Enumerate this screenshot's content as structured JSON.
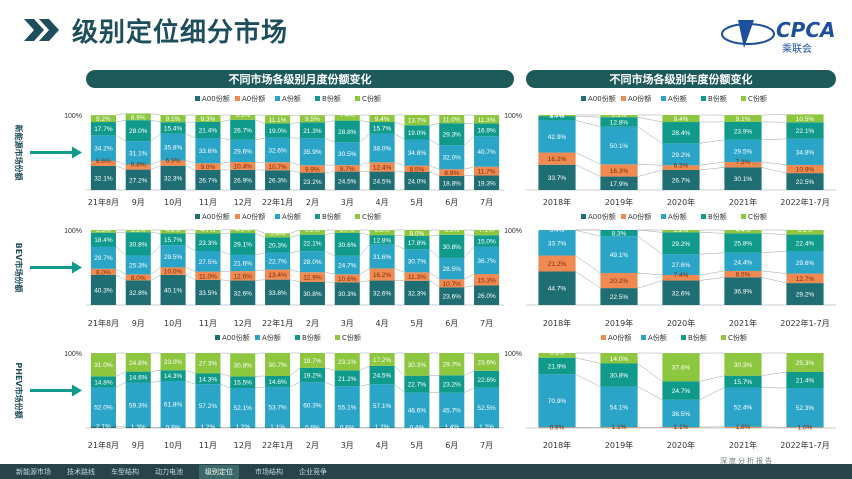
{
  "page": {
    "title": "级别定位细分市场",
    "logo_text": "CPCA",
    "logo_sub": "乘联会",
    "footer_note": "深度分析报告"
  },
  "panels": {
    "monthly_title": "不同市场各级别月度份额变化",
    "yearly_title": "不同市场各级别年度份额变化"
  },
  "colors": {
    "A00": "#1f6e73",
    "A0": "#ee8a52",
    "A": "#2aa4c7",
    "B": "#0f9a8c",
    "C": "#8dc63f"
  },
  "nav": [
    "新能源市场",
    "技术路线",
    "车型结构",
    "动力电池",
    "级别定位",
    "市场结构",
    "企业竞争"
  ],
  "nav_active": 4,
  "chart_data": [
    {
      "type": "bar",
      "stacked": true,
      "ylabel": "新能源市场份额",
      "ytick": "100%",
      "legend": [
        "A00份额",
        "A0份额",
        "A份额",
        "B份额",
        "C份额"
      ],
      "categories": [
        "21年8月",
        "9月",
        "10月",
        "11月",
        "12月",
        "22年1月",
        "2月",
        "3月",
        "4月",
        "5月",
        "6月",
        "7月"
      ],
      "series": [
        {
          "name": "A00份额",
          "values": [
            32.1,
            27.2,
            32.3,
            26.7,
            26.9,
            26.3,
            23.2,
            24.5,
            24.5,
            24.0,
            18.8,
            19.3
          ]
        },
        {
          "name": "A0份额",
          "values": [
            6.6,
            6.8,
            6.9,
            9.0,
            10.4,
            10.7,
            9.9,
            8.7,
            12.4,
            8.5,
            8.9,
            11.7
          ]
        },
        {
          "name": "A份额",
          "values": [
            34.2,
            31.1,
            35.8,
            33.6,
            29.6,
            32.6,
            35.9,
            30.5,
            38.0,
            34.8,
            32.0,
            40.7
          ]
        },
        {
          "name": "B份额",
          "values": [
            17.7,
            28.0,
            15.4,
            21.4,
            26.7,
            19.0,
            21.3,
            28.8,
            15.7,
            19.0,
            29.3,
            16.9
          ]
        },
        {
          "name": "C份额",
          "values": [
            9.2,
            8.9,
            9.5,
            9.3,
            6.5,
            11.1,
            9.5,
            7.4,
            9.4,
            13.7,
            11.0,
            11.3
          ]
        }
      ]
    },
    {
      "type": "bar",
      "stacked": true,
      "ylabel": "BEV市场份额",
      "ytick": "100%",
      "legend": [
        "A00份额",
        "A0份额",
        "A份额",
        "B份额",
        "C份额"
      ],
      "categories": [
        "21年8月",
        "9月",
        "10月",
        "11月",
        "12月",
        "22年1月",
        "2月",
        "3月",
        "4月",
        "5月",
        "6月",
        "7月"
      ],
      "series": [
        {
          "name": "A00份额",
          "values": [
            40.3,
            32.8,
            40.1,
            33.5,
            32.6,
            33.8,
            30.8,
            30.3,
            32.6,
            32.3,
            23.6,
            26.0
          ]
        },
        {
          "name": "A0份额",
          "values": [
            8.0,
            8.0,
            10.0,
            11.0,
            12.6,
            13.4,
            12.9,
            10.6,
            16.2,
            11.3,
            10.7,
            15.3
          ]
        },
        {
          "name": "A份额",
          "values": [
            29.7,
            25.3,
            29.5,
            27.5,
            21.6,
            22.7,
            28.0,
            24.7,
            31.6,
            30.7,
            28.5,
            36.7
          ]
        },
        {
          "name": "B份额",
          "values": [
            18.4,
            30.8,
            15.7,
            23.3,
            29.1,
            20.3,
            22.1,
            30.6,
            12.8,
            17.8,
            30.8,
            15.0
          ]
        },
        {
          "name": "C份额",
          "values": [
            3.6,
            3.2,
            4.8,
            4.7,
            4.5,
            5.4,
            6.2,
            3.7,
            6.8,
            8.0,
            6.3,
            7.1
          ]
        }
      ]
    },
    {
      "type": "bar",
      "stacked": true,
      "ylabel": "PHEV市场份额",
      "ytick": "100%",
      "legend": [
        "A00份额",
        "A份额",
        "B份额",
        "C份额"
      ],
      "categories": [
        "21年8月",
        "9月",
        "10月",
        "11月",
        "12月",
        "22年1月",
        "2月",
        "3月",
        "4月",
        "5月",
        "6月",
        "7月"
      ],
      "series": [
        {
          "name": "A00份额",
          "values": [
            2.1,
            1.3,
            0.9,
            1.2,
            1.2,
            1.1,
            0.8,
            0.6,
            1.2,
            0.4,
            1.4,
            1.2
          ]
        },
        {
          "name": "A份额",
          "values": [
            52.0,
            59.3,
            61.8,
            57.2,
            52.1,
            53.7,
            60.3,
            55.1,
            57.1,
            46.6,
            45.7,
            52.5
          ]
        },
        {
          "name": "B份额",
          "values": [
            14.8,
            14.6,
            14.3,
            14.3,
            15.5,
            14.6,
            19.2,
            21.2,
            24.5,
            22.7,
            23.2,
            22.6
          ]
        },
        {
          "name": "C份额",
          "values": [
            31.0,
            24.8,
            23.0,
            27.3,
            30.8,
            30.7,
            19.7,
            23.1,
            17.2,
            30.3,
            29.7,
            23.6
          ]
        }
      ]
    },
    {
      "type": "bar",
      "stacked": true,
      "ytick": "100%",
      "legend": [
        "A00份额",
        "A0份额",
        "A份额",
        "B份额",
        "C份额"
      ],
      "categories": [
        "2018年",
        "2019年",
        "2020年",
        "2021年",
        "2022年1-7月"
      ],
      "series": [
        {
          "name": "A00份额",
          "values": [
            33.7,
            17.9,
            26.7,
            30.1,
            22.5
          ]
        },
        {
          "name": "A0份额",
          "values": [
            16.2,
            16.3,
            6.3,
            7.3,
            10.9
          ]
        },
        {
          "name": "A份额",
          "values": [
            42.9,
            50.1,
            29.2,
            29.5,
            34.8
          ]
        },
        {
          "name": "B份额",
          "values": [
            5.7,
            12.8,
            28.4,
            23.9,
            22.1
          ]
        },
        {
          "name": "C份额",
          "values": [
            1.6,
            2.9,
            9.4,
            9.1,
            10.5
          ]
        }
      ]
    },
    {
      "type": "bar",
      "stacked": true,
      "ytick": "100%",
      "legend": [
        "A00份额",
        "A0份额",
        "A份额",
        "B份额",
        "C份额"
      ],
      "categories": [
        "2018年",
        "2019年",
        "2020年",
        "2021年",
        "2022年1-7月"
      ],
      "series": [
        {
          "name": "A00份额",
          "values": [
            44.7,
            22.5,
            32.6,
            36.9,
            29.2
          ]
        },
        {
          "name": "A0份额",
          "values": [
            21.2,
            20.2,
            7.4,
            8.5,
            12.7
          ]
        },
        {
          "name": "A份额",
          "values": [
            33.7,
            49.1,
            27.6,
            24.4,
            29.6
          ]
        },
        {
          "name": "B份额",
          "values": [
            0.4,
            8.3,
            29.2,
            25.8,
            22.4
          ]
        },
        {
          "name": "C份额",
          "values": [
            0.0,
            0.0,
            3.2,
            4.4,
            6.1
          ]
        }
      ]
    },
    {
      "type": "bar",
      "stacked": true,
      "ytick": "100%",
      "legend": [
        "A0份额",
        "A份额",
        "B份额",
        "C份额"
      ],
      "categories": [
        "2018年",
        "2019年",
        "2020年",
        "2021年",
        "2022年1-7月"
      ],
      "series": [
        {
          "name": "A0份额",
          "values": [
            0.9,
            1.1,
            1.1,
            1.6,
            1.0
          ]
        },
        {
          "name": "A份额",
          "values": [
            70.9,
            54.1,
            36.5,
            52.4,
            52.3
          ]
        },
        {
          "name": "B份额",
          "values": [
            21.9,
            30.8,
            24.7,
            15.7,
            21.4
          ]
        },
        {
          "name": "C份额",
          "values": [
            6.3,
            14.0,
            37.6,
            30.3,
            25.3
          ]
        }
      ]
    }
  ]
}
